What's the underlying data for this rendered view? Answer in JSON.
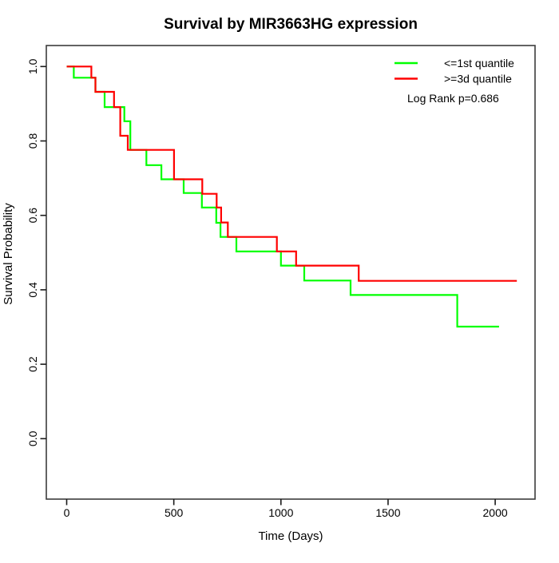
{
  "window": {
    "title": "Survival by MIR3663HG expression"
  },
  "legend": {
    "items": [
      {
        "label": "<=1st quantile",
        "color": "#00FF00"
      },
      {
        "label": ">=3d quantile",
        "color": "#FF0000"
      }
    ],
    "note": "Log Rank p=0.686"
  },
  "chart_data": {
    "type": "line",
    "subtype": "kaplan_meier_step",
    "title": "Survival by MIR3663HG expression",
    "xlabel": "Time (Days)",
    "ylabel": "Survival Probability",
    "xlim": [
      -90,
      2190
    ],
    "ylim": [
      0,
      1
    ],
    "grid": false,
    "legend_position": "top-right",
    "annotation": "Log Rank p=0.686",
    "x_ticks": [
      0,
      500,
      1000,
      1500,
      2000
    ],
    "x_tick_labels": [
      "0",
      "500",
      "1000",
      "1500",
      "2000"
    ],
    "y_ticks": [
      0.0,
      0.2,
      0.4,
      0.6,
      0.8,
      1.0
    ],
    "y_tick_labels": [
      "0.0",
      "0.2",
      "0.4",
      "0.6",
      "0.8",
      "1.0"
    ],
    "series": [
      {
        "name": "<=1st quantile",
        "color": "#00FF00",
        "end_time": 2018,
        "steps": [
          [
            0,
            1.0
          ],
          [
            33,
            0.97
          ],
          [
            134,
            0.932
          ],
          [
            177,
            0.891
          ],
          [
            269,
            0.853
          ],
          [
            297,
            0.776
          ],
          [
            372,
            0.735
          ],
          [
            442,
            0.697
          ],
          [
            546,
            0.66
          ],
          [
            631,
            0.621
          ],
          [
            698,
            0.58
          ],
          [
            718,
            0.542
          ],
          [
            792,
            0.503
          ],
          [
            1000,
            0.465
          ],
          [
            1109,
            0.425
          ],
          [
            1325,
            0.386
          ],
          [
            1823,
            0.301
          ]
        ]
      },
      {
        "name": ">=3d quantile",
        "color": "#FF0000",
        "end_time": 2101,
        "steps": [
          [
            0,
            1.0
          ],
          [
            115,
            0.97
          ],
          [
            134,
            0.932
          ],
          [
            221,
            0.891
          ],
          [
            250,
            0.814
          ],
          [
            285,
            0.776
          ],
          [
            501,
            0.697
          ],
          [
            633,
            0.658
          ],
          [
            700,
            0.621
          ],
          [
            721,
            0.581
          ],
          [
            752,
            0.542
          ],
          [
            981,
            0.503
          ],
          [
            1071,
            0.465
          ],
          [
            1363,
            0.424
          ]
        ]
      }
    ]
  }
}
